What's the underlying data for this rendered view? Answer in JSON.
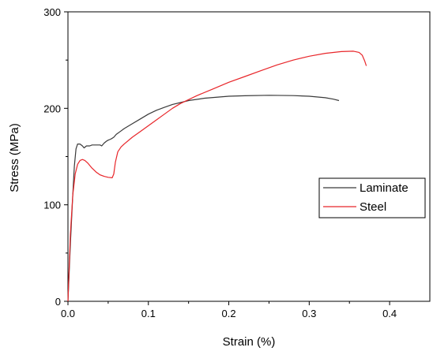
{
  "chart_data": {
    "type": "line",
    "title": "",
    "xlabel": "Strain (%)",
    "ylabel": "Stress (MPa)",
    "xlim": [
      0,
      0.45
    ],
    "ylim": [
      0,
      300
    ],
    "xticks": [
      0.0,
      0.1,
      0.2,
      0.3,
      0.4
    ],
    "xtick_labels": [
      "0.0",
      "0.1",
      "0.2",
      "0.3",
      "0.4"
    ],
    "yticks": [
      0,
      100,
      200,
      300
    ],
    "ytick_labels": [
      "0",
      "100",
      "200",
      "300"
    ],
    "grid": false,
    "legend_position": "right",
    "series": [
      {
        "name": "Laminate",
        "color": "#3a3a3a",
        "points": [
          [
            0.0,
            0
          ],
          [
            0.003,
            60
          ],
          [
            0.006,
            110
          ],
          [
            0.008,
            140
          ],
          [
            0.01,
            158
          ],
          [
            0.012,
            163
          ],
          [
            0.015,
            163
          ],
          [
            0.018,
            161
          ],
          [
            0.02,
            159
          ],
          [
            0.023,
            161
          ],
          [
            0.027,
            161
          ],
          [
            0.03,
            162
          ],
          [
            0.035,
            162
          ],
          [
            0.04,
            162
          ],
          [
            0.042,
            161
          ],
          [
            0.045,
            164
          ],
          [
            0.048,
            166
          ],
          [
            0.05,
            167
          ],
          [
            0.053,
            168
          ],
          [
            0.055,
            169
          ],
          [
            0.057,
            170
          ],
          [
            0.06,
            173
          ],
          [
            0.065,
            176
          ],
          [
            0.07,
            179
          ],
          [
            0.08,
            184
          ],
          [
            0.09,
            189
          ],
          [
            0.1,
            194
          ],
          [
            0.11,
            198
          ],
          [
            0.12,
            201
          ],
          [
            0.13,
            204
          ],
          [
            0.14,
            206
          ],
          [
            0.15,
            208
          ],
          [
            0.17,
            210.5
          ],
          [
            0.2,
            212.5
          ],
          [
            0.22,
            213
          ],
          [
            0.25,
            213.5
          ],
          [
            0.28,
            213.2
          ],
          [
            0.3,
            212.5
          ],
          [
            0.32,
            211
          ],
          [
            0.33,
            209.5
          ],
          [
            0.337,
            208
          ]
        ]
      },
      {
        "name": "Steel",
        "color": "#e8262a",
        "points": [
          [
            0.0,
            0
          ],
          [
            0.003,
            70
          ],
          [
            0.006,
            110
          ],
          [
            0.009,
            132
          ],
          [
            0.012,
            142
          ],
          [
            0.015,
            146
          ],
          [
            0.018,
            147
          ],
          [
            0.021,
            146
          ],
          [
            0.025,
            143
          ],
          [
            0.03,
            138
          ],
          [
            0.035,
            134
          ],
          [
            0.04,
            131
          ],
          [
            0.045,
            129.5
          ],
          [
            0.05,
            128.5
          ],
          [
            0.055,
            128
          ],
          [
            0.057,
            132
          ],
          [
            0.059,
            144
          ],
          [
            0.062,
            155
          ],
          [
            0.066,
            160
          ],
          [
            0.07,
            163
          ],
          [
            0.08,
            170
          ],
          [
            0.09,
            176
          ],
          [
            0.1,
            182
          ],
          [
            0.11,
            188
          ],
          [
            0.12,
            194
          ],
          [
            0.13,
            200
          ],
          [
            0.14,
            205
          ],
          [
            0.16,
            213
          ],
          [
            0.18,
            220
          ],
          [
            0.2,
            227
          ],
          [
            0.22,
            233
          ],
          [
            0.24,
            239
          ],
          [
            0.26,
            245
          ],
          [
            0.28,
            250
          ],
          [
            0.3,
            254
          ],
          [
            0.32,
            257
          ],
          [
            0.34,
            258.8
          ],
          [
            0.355,
            259.2
          ],
          [
            0.362,
            258
          ],
          [
            0.366,
            255
          ],
          [
            0.369,
            249
          ],
          [
            0.371,
            244
          ]
        ]
      }
    ]
  }
}
